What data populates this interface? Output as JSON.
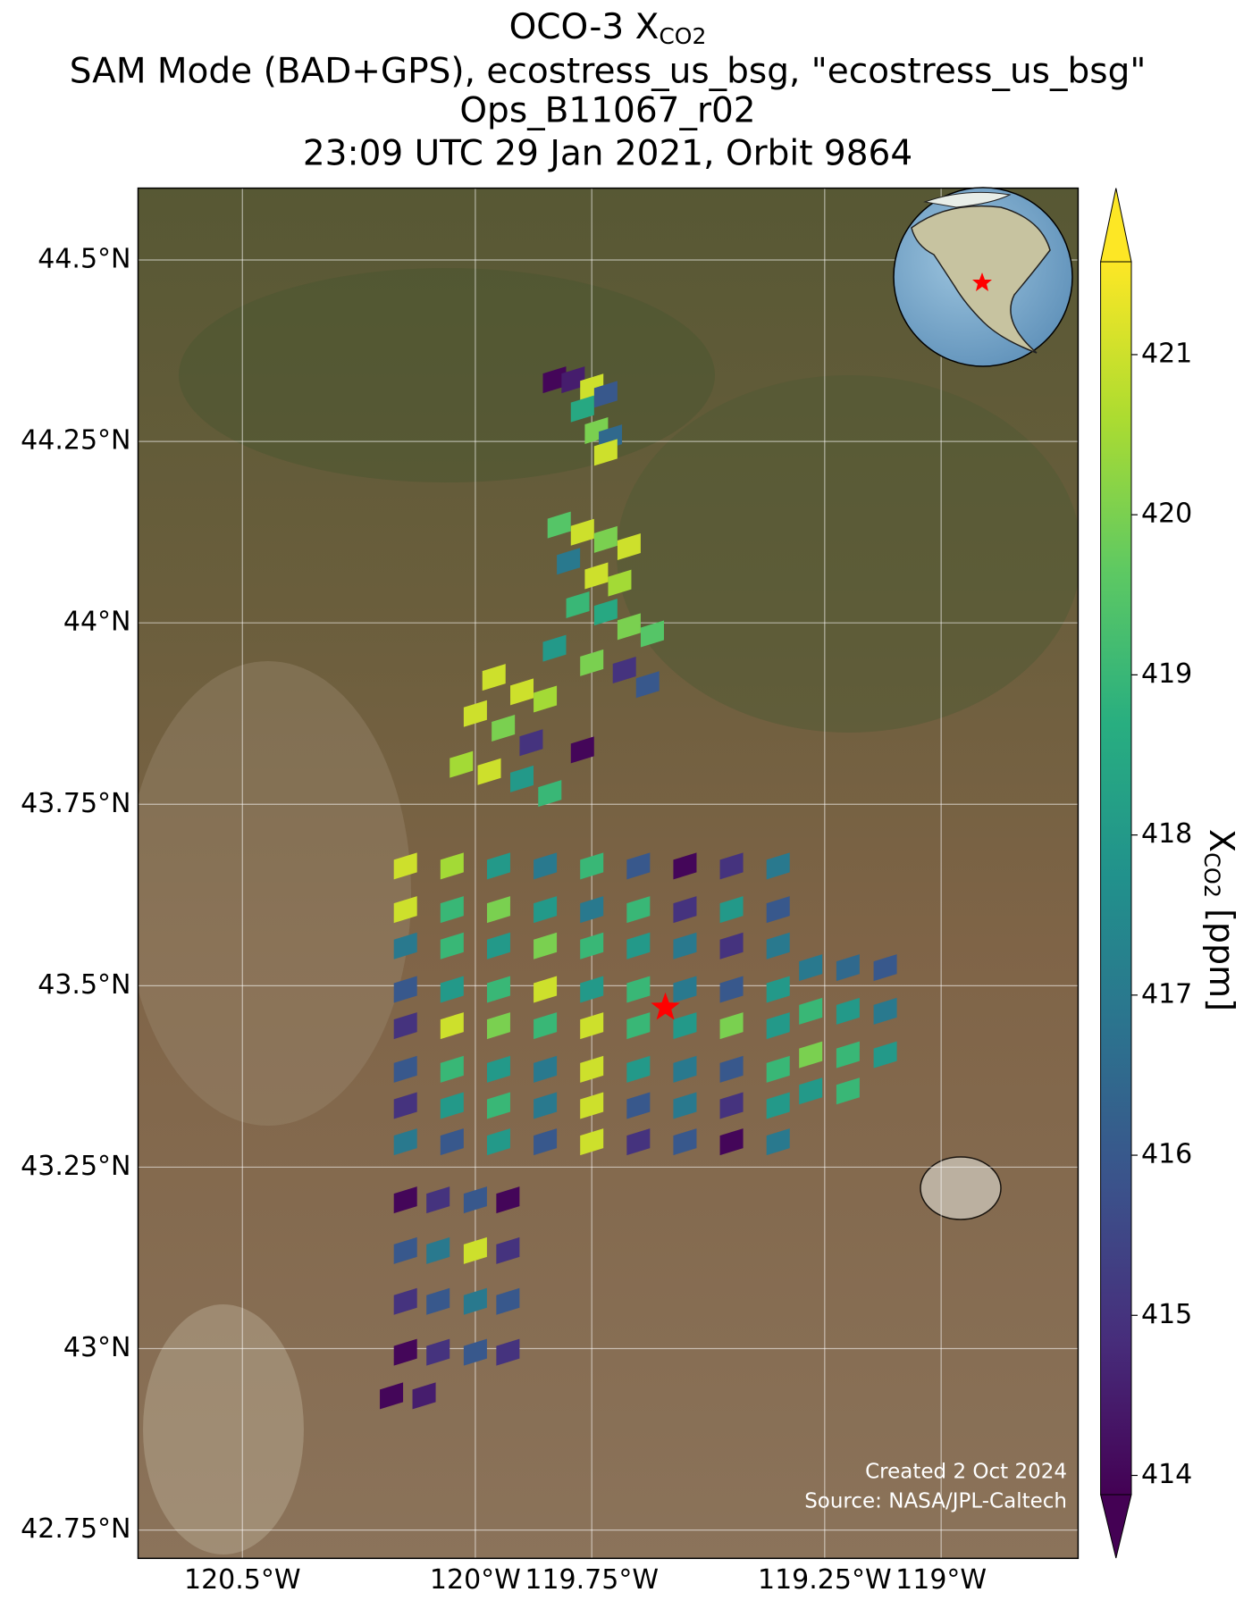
{
  "chart_data": {
    "type": "map",
    "title": {
      "text": "OCO-3 X",
      "subscript": "CO2"
    },
    "subtitle": [
      "SAM Mode (BAD+GPS), ecostress_us_bsg, \"ecostress_us_bsg\"",
      "Ops_B11067_r02",
      "23:09 UTC 29 Jan 2021, Orbit 9864"
    ],
    "xlim": [
      -120.724,
      -118.706
    ],
    "ylim": [
      42.711,
      44.599
    ],
    "xticks": [
      {
        "value": -120.5,
        "label": "120.5°W"
      },
      {
        "value": -120.0,
        "label": "120°W"
      },
      {
        "value": -119.75,
        "label": "119.75°W"
      },
      {
        "value": -119.25,
        "label": "119.25°W"
      },
      {
        "value": -119.0,
        "label": "119°W"
      }
    ],
    "yticks": [
      {
        "value": 44.5,
        "label": "44.5°N"
      },
      {
        "value": 44.25,
        "label": "44.25°N"
      },
      {
        "value": 44.0,
        "label": "44°N"
      },
      {
        "value": 43.75,
        "label": "43.75°N"
      },
      {
        "value": 43.5,
        "label": "43.5°N"
      },
      {
        "value": 43.25,
        "label": "43.25°N"
      },
      {
        "value": 43.0,
        "label": "43°N"
      },
      {
        "value": 42.75,
        "label": "42.75°N"
      }
    ],
    "grid": true,
    "colorbar": {
      "label": "X",
      "label_subscript": "CO2",
      "label_unit": " [ppm]",
      "clim": [
        413.88,
        421.58
      ],
      "ticks": [
        414,
        415,
        416,
        417,
        418,
        419,
        420,
        421
      ],
      "colormap": "viridis"
    },
    "target": {
      "lon": -119.592,
      "lat": 43.47,
      "color": "#ff0000"
    },
    "annotations": [
      "Created 2 Oct 2024",
      "Source: NASA/JPL-Caltech"
    ],
    "footprints": [
      {
        "lon": -119.83,
        "lat": 44.33,
        "value": 414
      },
      {
        "lon": -119.79,
        "lat": 44.33,
        "value": 414.5
      },
      {
        "lon": -119.75,
        "lat": 44.32,
        "value": 421
      },
      {
        "lon": -119.72,
        "lat": 44.31,
        "value": 416
      },
      {
        "lon": -119.77,
        "lat": 44.29,
        "value": 418.5
      },
      {
        "lon": -119.74,
        "lat": 44.26,
        "value": 420
      },
      {
        "lon": -119.71,
        "lat": 44.25,
        "value": 416.5
      },
      {
        "lon": -119.72,
        "lat": 44.23,
        "value": 421
      },
      {
        "lon": -119.82,
        "lat": 44.13,
        "value": 419.5
      },
      {
        "lon": -119.77,
        "lat": 44.12,
        "value": 421
      },
      {
        "lon": -119.72,
        "lat": 44.11,
        "value": 420
      },
      {
        "lon": -119.67,
        "lat": 44.1,
        "value": 421
      },
      {
        "lon": -119.8,
        "lat": 44.08,
        "value": 417
      },
      {
        "lon": -119.74,
        "lat": 44.06,
        "value": 421
      },
      {
        "lon": -119.69,
        "lat": 44.05,
        "value": 420.5
      },
      {
        "lon": -119.78,
        "lat": 44.02,
        "value": 419
      },
      {
        "lon": -119.72,
        "lat": 44.01,
        "value": 418.5
      },
      {
        "lon": -119.67,
        "lat": 43.99,
        "value": 420
      },
      {
        "lon": -119.62,
        "lat": 43.98,
        "value": 419.5
      },
      {
        "lon": -119.83,
        "lat": 43.96,
        "value": 418
      },
      {
        "lon": -119.75,
        "lat": 43.94,
        "value": 420
      },
      {
        "lon": -119.68,
        "lat": 43.93,
        "value": 415
      },
      {
        "lon": -119.63,
        "lat": 43.91,
        "value": 416
      },
      {
        "lon": -119.96,
        "lat": 43.92,
        "value": 421
      },
      {
        "lon": -119.9,
        "lat": 43.9,
        "value": 421
      },
      {
        "lon": -119.85,
        "lat": 43.89,
        "value": 420.5
      },
      {
        "lon": -120.0,
        "lat": 43.87,
        "value": 421
      },
      {
        "lon": -119.94,
        "lat": 43.85,
        "value": 420
      },
      {
        "lon": -119.88,
        "lat": 43.83,
        "value": 415
      },
      {
        "lon": -120.03,
        "lat": 43.8,
        "value": 420.5
      },
      {
        "lon": -119.97,
        "lat": 43.79,
        "value": 421
      },
      {
        "lon": -119.9,
        "lat": 43.78,
        "value": 418
      },
      {
        "lon": -119.84,
        "lat": 43.76,
        "value": 419
      },
      {
        "lon": -119.77,
        "lat": 43.82,
        "value": 414
      },
      {
        "lon": -120.15,
        "lat": 43.66,
        "value": 421
      },
      {
        "lon": -120.05,
        "lat": 43.66,
        "value": 420.5
      },
      {
        "lon": -119.95,
        "lat": 43.66,
        "value": 418
      },
      {
        "lon": -119.85,
        "lat": 43.66,
        "value": 417
      },
      {
        "lon": -119.75,
        "lat": 43.66,
        "value": 419
      },
      {
        "lon": -119.65,
        "lat": 43.66,
        "value": 416
      },
      {
        "lon": -119.55,
        "lat": 43.66,
        "value": 414
      },
      {
        "lon": -119.45,
        "lat": 43.66,
        "value": 415
      },
      {
        "lon": -119.35,
        "lat": 43.66,
        "value": 417
      },
      {
        "lon": -120.15,
        "lat": 43.6,
        "value": 421
      },
      {
        "lon": -120.05,
        "lat": 43.6,
        "value": 419
      },
      {
        "lon": -119.95,
        "lat": 43.6,
        "value": 420
      },
      {
        "lon": -119.85,
        "lat": 43.6,
        "value": 418
      },
      {
        "lon": -119.75,
        "lat": 43.6,
        "value": 417
      },
      {
        "lon": -119.65,
        "lat": 43.6,
        "value": 419
      },
      {
        "lon": -119.55,
        "lat": 43.6,
        "value": 415
      },
      {
        "lon": -119.45,
        "lat": 43.6,
        "value": 418
      },
      {
        "lon": -119.35,
        "lat": 43.6,
        "value": 416
      },
      {
        "lon": -120.15,
        "lat": 43.55,
        "value": 417
      },
      {
        "lon": -120.05,
        "lat": 43.55,
        "value": 419
      },
      {
        "lon": -119.95,
        "lat": 43.55,
        "value": 418
      },
      {
        "lon": -119.85,
        "lat": 43.55,
        "value": 420
      },
      {
        "lon": -119.75,
        "lat": 43.55,
        "value": 419
      },
      {
        "lon": -119.65,
        "lat": 43.55,
        "value": 418
      },
      {
        "lon": -119.55,
        "lat": 43.55,
        "value": 417
      },
      {
        "lon": -119.45,
        "lat": 43.55,
        "value": 415
      },
      {
        "lon": -119.35,
        "lat": 43.55,
        "value": 417
      },
      {
        "lon": -120.15,
        "lat": 43.49,
        "value": 416
      },
      {
        "lon": -120.05,
        "lat": 43.49,
        "value": 418
      },
      {
        "lon": -119.95,
        "lat": 43.49,
        "value": 419
      },
      {
        "lon": -119.85,
        "lat": 43.49,
        "value": 421
      },
      {
        "lon": -119.75,
        "lat": 43.49,
        "value": 418
      },
      {
        "lon": -119.65,
        "lat": 43.49,
        "value": 419
      },
      {
        "lon": -119.55,
        "lat": 43.49,
        "value": 417
      },
      {
        "lon": -119.45,
        "lat": 43.49,
        "value": 416
      },
      {
        "lon": -119.35,
        "lat": 43.49,
        "value": 418
      },
      {
        "lon": -120.15,
        "lat": 43.44,
        "value": 415
      },
      {
        "lon": -120.05,
        "lat": 43.44,
        "value": 421
      },
      {
        "lon": -119.95,
        "lat": 43.44,
        "value": 420
      },
      {
        "lon": -119.85,
        "lat": 43.44,
        "value": 419
      },
      {
        "lon": -119.75,
        "lat": 43.44,
        "value": 421
      },
      {
        "lon": -119.65,
        "lat": 43.44,
        "value": 419
      },
      {
        "lon": -119.55,
        "lat": 43.44,
        "value": 418
      },
      {
        "lon": -119.45,
        "lat": 43.44,
        "value": 420
      },
      {
        "lon": -119.35,
        "lat": 43.44,
        "value": 418
      },
      {
        "lon": -120.15,
        "lat": 43.38,
        "value": 416
      },
      {
        "lon": -120.05,
        "lat": 43.38,
        "value": 419
      },
      {
        "lon": -119.95,
        "lat": 43.38,
        "value": 418
      },
      {
        "lon": -119.85,
        "lat": 43.38,
        "value": 417
      },
      {
        "lon": -119.75,
        "lat": 43.38,
        "value": 421
      },
      {
        "lon": -119.65,
        "lat": 43.38,
        "value": 418
      },
      {
        "lon": -119.55,
        "lat": 43.38,
        "value": 417
      },
      {
        "lon": -119.45,
        "lat": 43.38,
        "value": 416
      },
      {
        "lon": -119.35,
        "lat": 43.38,
        "value": 419
      },
      {
        "lon": -120.15,
        "lat": 43.33,
        "value": 415
      },
      {
        "lon": -120.05,
        "lat": 43.33,
        "value": 418
      },
      {
        "lon": -119.95,
        "lat": 43.33,
        "value": 419
      },
      {
        "lon": -119.85,
        "lat": 43.33,
        "value": 417
      },
      {
        "lon": -119.75,
        "lat": 43.33,
        "value": 421
      },
      {
        "lon": -119.65,
        "lat": 43.33,
        "value": 416
      },
      {
        "lon": -119.55,
        "lat": 43.33,
        "value": 417
      },
      {
        "lon": -119.45,
        "lat": 43.33,
        "value": 415
      },
      {
        "lon": -119.35,
        "lat": 43.33,
        "value": 418
      },
      {
        "lon": -120.15,
        "lat": 43.28,
        "value": 417
      },
      {
        "lon": -120.05,
        "lat": 43.28,
        "value": 416
      },
      {
        "lon": -119.95,
        "lat": 43.28,
        "value": 418
      },
      {
        "lon": -119.85,
        "lat": 43.28,
        "value": 416
      },
      {
        "lon": -119.75,
        "lat": 43.28,
        "value": 421
      },
      {
        "lon": -119.65,
        "lat": 43.28,
        "value": 415
      },
      {
        "lon": -119.55,
        "lat": 43.28,
        "value": 416
      },
      {
        "lon": -119.45,
        "lat": 43.28,
        "value": 414
      },
      {
        "lon": -119.35,
        "lat": 43.28,
        "value": 417
      },
      {
        "lon": -119.28,
        "lat": 43.52,
        "value": 417
      },
      {
        "lon": -119.2,
        "lat": 43.52,
        "value": 416.5
      },
      {
        "lon": -119.12,
        "lat": 43.52,
        "value": 416
      },
      {
        "lon": -119.28,
        "lat": 43.46,
        "value": 419
      },
      {
        "lon": -119.2,
        "lat": 43.46,
        "value": 418
      },
      {
        "lon": -119.12,
        "lat": 43.46,
        "value": 417
      },
      {
        "lon": -119.28,
        "lat": 43.4,
        "value": 420
      },
      {
        "lon": -119.2,
        "lat": 43.4,
        "value": 419
      },
      {
        "lon": -119.12,
        "lat": 43.4,
        "value": 418
      },
      {
        "lon": -119.28,
        "lat": 43.35,
        "value": 418
      },
      {
        "lon": -119.2,
        "lat": 43.35,
        "value": 419
      },
      {
        "lon": -120.15,
        "lat": 43.2,
        "value": 414
      },
      {
        "lon": -120.08,
        "lat": 43.2,
        "value": 415
      },
      {
        "lon": -120.0,
        "lat": 43.2,
        "value": 416
      },
      {
        "lon": -119.93,
        "lat": 43.2,
        "value": 414
      },
      {
        "lon": -120.15,
        "lat": 43.13,
        "value": 416
      },
      {
        "lon": -120.08,
        "lat": 43.13,
        "value": 417
      },
      {
        "lon": -120.0,
        "lat": 43.13,
        "value": 421
      },
      {
        "lon": -119.93,
        "lat": 43.13,
        "value": 415
      },
      {
        "lon": -120.15,
        "lat": 43.06,
        "value": 415
      },
      {
        "lon": -120.08,
        "lat": 43.06,
        "value": 416
      },
      {
        "lon": -120.0,
        "lat": 43.06,
        "value": 417
      },
      {
        "lon": -119.93,
        "lat": 43.06,
        "value": 416
      },
      {
        "lon": -120.15,
        "lat": 42.99,
        "value": 414
      },
      {
        "lon": -120.08,
        "lat": 42.99,
        "value": 415
      },
      {
        "lon": -120.0,
        "lat": 42.99,
        "value": 416
      },
      {
        "lon": -119.93,
        "lat": 42.99,
        "value": 415
      },
      {
        "lon": -120.18,
        "lat": 42.93,
        "value": 414
      },
      {
        "lon": -120.11,
        "lat": 42.93,
        "value": 414.5
      }
    ]
  }
}
